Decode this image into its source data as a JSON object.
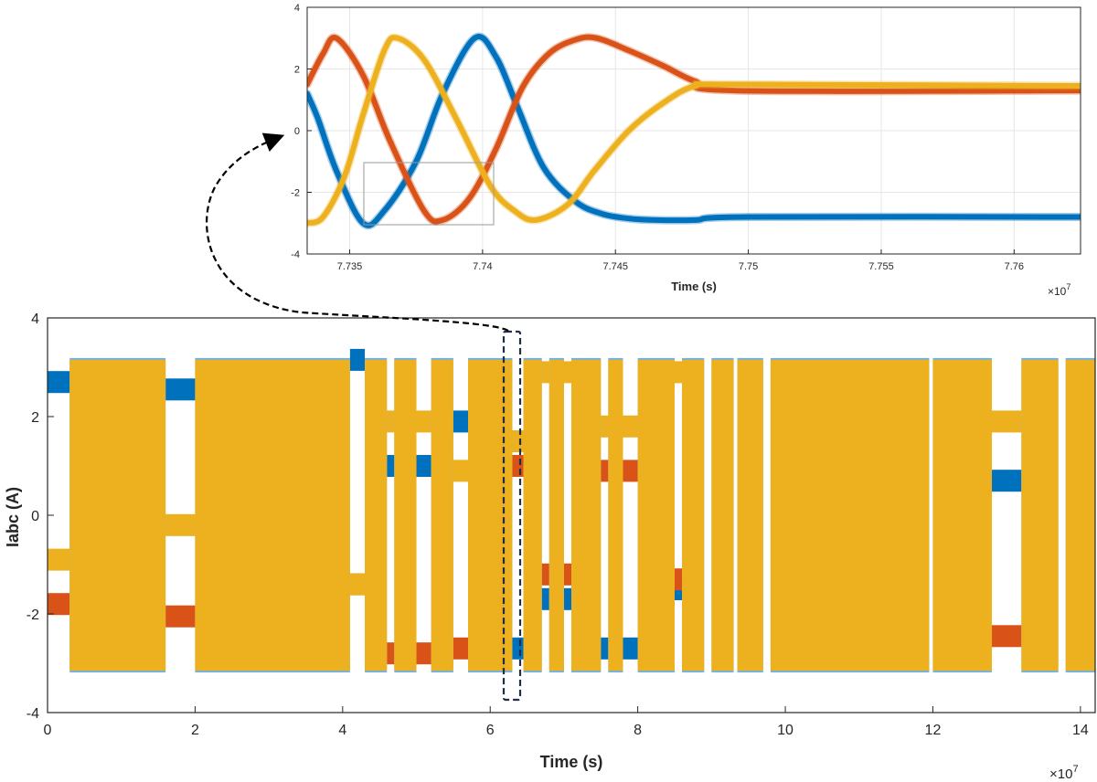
{
  "colors": {
    "ia": "#0072BD",
    "ib": "#D95319",
    "ic": "#EDB120",
    "grid": "#e6e6e6",
    "axis": "#262626",
    "box": "#1f2d4a"
  },
  "chart_data": [
    {
      "id": "zoom",
      "type": "line",
      "title": "",
      "xlabel": "Time (s)",
      "ylabel": "",
      "x_exponent_label": "×10",
      "x_exponent": "7",
      "xlim": [
        7.7334,
        7.7625
      ],
      "ylim": [
        -4,
        4
      ],
      "xticks": [
        7.735,
        7.74,
        7.745,
        7.75,
        7.755,
        7.76
      ],
      "xticklabels": [
        "7.735",
        "7.74",
        "7.745",
        "7.75",
        "7.755",
        "7.76"
      ],
      "yticks": [
        -4,
        -2,
        0,
        2,
        4
      ],
      "yticklabels": [
        "-4",
        "-2",
        "0",
        "2",
        "4"
      ],
      "grid": true,
      "series": [
        {
          "key": "ia",
          "x": [
            7.7334,
            7.7338,
            7.7345,
            7.7355,
            7.7363,
            7.7375,
            7.7385,
            7.7397,
            7.7405,
            7.7413,
            7.7423,
            7.7435,
            7.7445,
            7.7455,
            7.7465,
            7.748,
            7.75,
            7.7625
          ],
          "y": [
            1.2,
            0.4,
            -1.3,
            -3.0,
            -2.6,
            -1.0,
            1.2,
            3.0,
            2.4,
            0.8,
            -1.2,
            -2.3,
            -2.7,
            -2.85,
            -2.9,
            -2.9,
            -2.8,
            -2.8
          ]
        },
        {
          "key": "ib",
          "x": [
            7.7334,
            7.734,
            7.7345,
            7.7355,
            7.7365,
            7.7378,
            7.7385,
            7.7395,
            7.7405,
            7.7415,
            7.7425,
            7.7435,
            7.7443,
            7.7455,
            7.7468,
            7.748,
            7.7495,
            7.7625
          ],
          "y": [
            1.5,
            2.5,
            3.0,
            1.8,
            -0.3,
            -2.6,
            -2.9,
            -2.2,
            -0.6,
            1.4,
            2.5,
            2.95,
            3.0,
            2.6,
            2.1,
            1.6,
            1.3,
            1.3
          ]
        },
        {
          "key": "ic",
          "x": [
            7.7334,
            7.734,
            7.7348,
            7.7355,
            7.7363,
            7.7368,
            7.7378,
            7.739,
            7.7403,
            7.7412,
            7.742,
            7.7432,
            7.7442,
            7.7455,
            7.7468,
            7.748,
            7.7495,
            7.7625
          ],
          "y": [
            -3.0,
            -2.8,
            -1.5,
            0.5,
            2.6,
            3.0,
            2.3,
            0.4,
            -1.8,
            -2.6,
            -2.9,
            -2.4,
            -1.3,
            0.0,
            0.9,
            1.45,
            1.5,
            1.45
          ]
        }
      ]
    },
    {
      "id": "main",
      "type": "area",
      "title": "",
      "xlabel": "Time (s)",
      "ylabel": "Iabc (A)",
      "x_exponent_label": "×10",
      "x_exponent": "7",
      "xlim": [
        0,
        14.2
      ],
      "ylim": [
        -4,
        4
      ],
      "xticks": [
        0,
        2,
        4,
        6,
        8,
        10,
        12,
        14
      ],
      "xticklabels": [
        "0",
        "2",
        "4",
        "6",
        "8",
        "10",
        "12",
        "14"
      ],
      "yticks": [
        -4,
        -2,
        0,
        2,
        4
      ],
      "yticklabels": [
        "-4",
        "-2",
        "0",
        "2",
        "4"
      ],
      "grid": false,
      "envelope_top": 3.15,
      "envelope_bottom": -3.15,
      "oscillating_segments": [
        [
          0.3,
          1.6
        ],
        [
          2.0,
          4.1
        ],
        [
          4.3,
          4.6
        ],
        [
          4.7,
          5.0
        ],
        [
          5.2,
          5.5
        ],
        [
          5.7,
          6.3
        ],
        [
          6.45,
          6.7
        ],
        [
          6.8,
          7.0
        ],
        [
          7.1,
          7.5
        ],
        [
          7.6,
          7.8
        ],
        [
          8.0,
          8.5
        ],
        [
          8.6,
          8.9
        ],
        [
          9.0,
          9.3
        ],
        [
          9.35,
          9.7
        ],
        [
          9.8,
          11.95
        ],
        [
          12.0,
          12.8
        ],
        [
          13.2,
          13.7
        ],
        [
          13.8,
          14.2
        ]
      ],
      "dc_blocks": [
        {
          "x": [
            0.0,
            0.3
          ],
          "ia": 2.7,
          "ib": -1.8,
          "ic": -0.9
        },
        {
          "x": [
            1.6,
            2.0
          ],
          "ia": 2.55,
          "ib": -2.05,
          "ic": -0.2
        },
        {
          "x": [
            4.1,
            4.3
          ],
          "ia": 3.15,
          "ib": -1.4,
          "ic": -1.4
        },
        {
          "x": [
            4.6,
            4.7
          ],
          "ia": 1.0,
          "ib": -2.8,
          "ic": 1.9
        },
        {
          "x": [
            5.0,
            5.2
          ],
          "ia": 1.0,
          "ib": -2.8,
          "ic": 1.9
        },
        {
          "x": [
            5.5,
            5.7
          ],
          "ia": 1.9,
          "ib": -2.7,
          "ic": 0.9
        },
        {
          "x": [
            6.3,
            6.45
          ],
          "ia": -2.7,
          "ib": 1.0,
          "ic": 1.5
        },
        {
          "x": [
            6.7,
            6.8
          ],
          "ia": -1.7,
          "ib": -1.2,
          "ic": 2.9
        },
        {
          "x": [
            7.0,
            7.1
          ],
          "ia": -1.7,
          "ib": -1.2,
          "ic": 2.9
        },
        {
          "x": [
            7.5,
            7.6
          ],
          "ia": -2.7,
          "ib": 0.9,
          "ic": 1.8
        },
        {
          "x": [
            7.8,
            8.0
          ],
          "ia": -2.7,
          "ib": 0.9,
          "ic": 1.8
        },
        {
          "x": [
            8.5,
            8.6
          ],
          "ia": -1.5,
          "ib": -1.3,
          "ic": 2.9
        },
        {
          "x": [
            12.8,
            13.2
          ],
          "ia": 0.7,
          "ib": -2.45,
          "ic": 1.9
        }
      ]
    }
  ]
}
